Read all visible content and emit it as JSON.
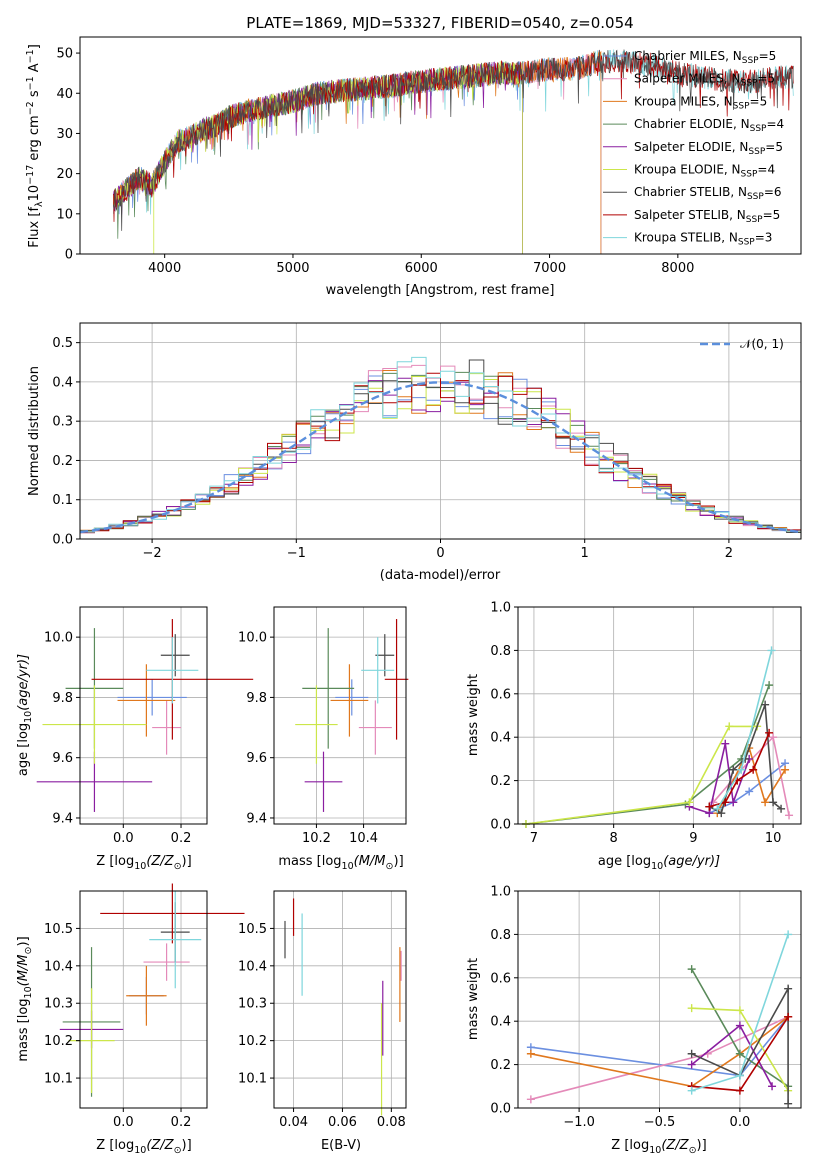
{
  "title": "PLATE=1869, MJD=53327, FIBERID=0540, z=0.054",
  "colors": {
    "Chabrier MILES": "#6b8fe0",
    "Salpeter MILES": "#e48ab9",
    "Kroupa MILES": "#e0781e",
    "Chabrier ELODIE": "#5a8a5a",
    "Salpeter ELODIE": "#8a1ea0",
    "Kroupa ELODIE": "#cce64a",
    "Chabrier STELIB": "#4a4a4a",
    "Salpeter STELIB": "#b00000",
    "Kroupa STELIB": "#7fd6dc"
  },
  "chart_data": [
    {
      "type": "line",
      "title": "PLATE=1869, MJD=53327, FIBERID=0540, z=0.054",
      "xlabel": "wavelength [Angstrom, rest frame]",
      "ylabel_parts": [
        "Flux [f",
        "λ",
        "10",
        "−17",
        " erg cm",
        "−2",
        " s",
        "−1",
        " A",
        "−1",
        "]"
      ],
      "xlim": [
        3340,
        8960
      ],
      "ylim": [
        0,
        54
      ],
      "xticks": [
        4000,
        5000,
        6000,
        7000,
        8000
      ],
      "yticks": [
        0,
        10,
        20,
        30,
        40,
        50
      ],
      "continuum_x": [
        3600,
        3700,
        3800,
        3900,
        4000,
        4100,
        4200,
        4300,
        4400,
        4500,
        4700,
        5000,
        5200,
        5500,
        5800,
        6000,
        6300,
        6600,
        6800,
        7000,
        7200,
        7400,
        7600,
        7800,
        8000,
        8200,
        8400,
        8600,
        8800,
        8900
      ],
      "continuum_y": [
        13,
        16,
        19,
        17,
        23,
        28,
        29,
        31,
        32,
        34,
        36,
        38,
        40,
        41,
        42,
        43,
        44,
        45,
        45,
        46,
        46,
        48,
        48,
        47,
        45,
        44,
        43,
        43,
        44,
        44
      ],
      "series": [
        {
          "name": "Chabrier MILES",
          "nssp": "5",
          "xmax": 7400
        },
        {
          "name": "Salpeter MILES",
          "nssp": "5",
          "xmax": 7400
        },
        {
          "name": "Kroupa MILES",
          "nssp": "5",
          "xmax": 7400
        },
        {
          "name": "Chabrier ELODIE",
          "nssp": "4",
          "xmax": 6790
        },
        {
          "name": "Salpeter ELODIE",
          "nssp": "5",
          "xmax": 6790
        },
        {
          "name": "Kroupa ELODIE",
          "nssp": "4",
          "xmax": 6790
        },
        {
          "name": "Chabrier STELIB",
          "nssp": "6",
          "xmax": 8900
        },
        {
          "name": "Salpeter STELIB",
          "nssp": "5",
          "xmax": 8900
        },
        {
          "name": "Kroupa STELIB",
          "nssp": "3",
          "xmax": 8900
        }
      ]
    },
    {
      "type": "bar",
      "xlabel": "(data-model)/error",
      "ylabel": "Normed distribution",
      "xlim": [
        -2.5,
        2.5
      ],
      "ylim": [
        0,
        0.55
      ],
      "xticks": [
        -2,
        -1,
        0,
        1,
        2
      ],
      "xticklabels": [
        "−2",
        "−1",
        "0",
        "1",
        "2"
      ],
      "yticks": [
        0.0,
        0.1,
        0.2,
        0.3,
        0.4,
        0.5
      ],
      "bin_width": 0.1,
      "gaussian_label": "𝒩(0, 1)"
    },
    {
      "type": "scatter",
      "xlabel_parts": [
        "Z [log",
        "10",
        "(Z/Z",
        "⊙",
        ")]"
      ],
      "ylabel_parts": [
        "age  [log",
        "10",
        "(age/yr)]"
      ],
      "xlim": [
        -0.15,
        0.29
      ],
      "ylim": [
        9.38,
        10.1
      ],
      "xticks": [
        0.0,
        0.2
      ],
      "yticks": [
        9.4,
        9.6,
        9.8,
        10.0
      ],
      "points": [
        {
          "s": "Chabrier MILES",
          "x": 0.1,
          "y": 9.8,
          "xe": 0.12,
          "ye": 0.06
        },
        {
          "s": "Salpeter MILES",
          "x": 0.15,
          "y": 9.7,
          "xe": 0.05,
          "ye": 0.09
        },
        {
          "s": "Kroupa MILES",
          "x": 0.08,
          "y": 9.79,
          "xe": 0.1,
          "ye": 0.12
        },
        {
          "s": "Chabrier ELODIE",
          "x": -0.1,
          "y": 9.83,
          "xe": 0.1,
          "ye": 0.2
        },
        {
          "s": "Salpeter ELODIE",
          "x": -0.1,
          "y": 9.52,
          "xe": 0.2,
          "ye": 0.1
        },
        {
          "s": "Kroupa ELODIE",
          "x": -0.1,
          "y": 9.71,
          "xe": 0.18,
          "ye": 0.13
        },
        {
          "s": "Chabrier STELIB",
          "x": 0.18,
          "y": 9.94,
          "xe": 0.05,
          "ye": 0.07
        },
        {
          "s": "Salpeter STELIB",
          "x": 0.17,
          "y": 9.86,
          "xe": 0.28,
          "ye": 0.2
        },
        {
          "s": "Kroupa STELIB",
          "x": 0.17,
          "y": 9.89,
          "xe": 0.09,
          "ye": 0.11
        }
      ]
    },
    {
      "type": "scatter",
      "xlabel_parts": [
        "mass [log",
        "10",
        "(M/M",
        "⊙",
        ")]"
      ],
      "xlim": [
        10.02,
        10.58
      ],
      "ylim": [
        9.38,
        10.1
      ],
      "xticks": [
        10.2,
        10.4
      ],
      "yticks": [
        9.4,
        9.6,
        9.8,
        10.0
      ],
      "points": [
        {
          "s": "Chabrier MILES",
          "x": 10.35,
          "y": 9.8,
          "xe": 0.07,
          "ye": 0.06
        },
        {
          "s": "Salpeter MILES",
          "x": 10.45,
          "y": 9.7,
          "xe": 0.07,
          "ye": 0.09
        },
        {
          "s": "Kroupa MILES",
          "x": 10.34,
          "y": 9.79,
          "xe": 0.08,
          "ye": 0.12
        },
        {
          "s": "Chabrier ELODIE",
          "x": 10.25,
          "y": 9.83,
          "xe": 0.11,
          "ye": 0.2
        },
        {
          "s": "Salpeter ELODIE",
          "x": 10.23,
          "y": 9.52,
          "xe": 0.08,
          "ye": 0.1
        },
        {
          "s": "Kroupa ELODIE",
          "x": 10.2,
          "y": 9.71,
          "xe": 0.09,
          "ye": 0.13
        },
        {
          "s": "Chabrier STELIB",
          "x": 10.49,
          "y": 9.94,
          "xe": 0.04,
          "ye": 0.07
        },
        {
          "s": "Salpeter STELIB",
          "x": 10.54,
          "y": 9.86,
          "xe": 0.05,
          "ye": 0.2
        },
        {
          "s": "Kroupa STELIB",
          "x": 10.46,
          "y": 9.89,
          "xe": 0.07,
          "ye": 0.11
        }
      ]
    },
    {
      "type": "line",
      "xlabel_parts": [
        "age  [log",
        "10",
        "(age/yr)]"
      ],
      "ylabel": "mass weight",
      "xlim": [
        6.8,
        10.35
      ],
      "ylim": [
        0,
        1.0
      ],
      "xticks": [
        7,
        8,
        9,
        10
      ],
      "yticks": [
        0.0,
        0.2,
        0.4,
        0.6,
        0.8,
        1.0
      ],
      "series": [
        {
          "s": "Chabrier MILES",
          "x": [
            9.2,
            9.5,
            9.7,
            10.15
          ],
          "y": [
            0.05,
            0.1,
            0.15,
            0.28
          ]
        },
        {
          "s": "Salpeter MILES",
          "x": [
            9.25,
            9.6,
            10.0,
            10.2
          ],
          "y": [
            0.1,
            0.25,
            0.4,
            0.04
          ]
        },
        {
          "s": "Kroupa MILES",
          "x": [
            9.3,
            9.7,
            9.9,
            10.15
          ],
          "y": [
            0.05,
            0.35,
            0.1,
            0.25
          ]
        },
        {
          "s": "Chabrier ELODIE",
          "x": [
            6.9,
            8.9,
            9.6,
            9.95
          ],
          "y": [
            0.0,
            0.09,
            0.3,
            0.64
          ]
        },
        {
          "s": "Salpeter ELODIE",
          "x": [
            8.95,
            9.2,
            9.4,
            9.5,
            9.7
          ],
          "y": [
            0.08,
            0.05,
            0.37,
            0.1,
            0.3
          ]
        },
        {
          "s": "Kroupa ELODIE",
          "x": [
            6.9,
            8.95,
            9.45,
            9.8
          ],
          "y": [
            0.0,
            0.1,
            0.45,
            0.45
          ]
        },
        {
          "s": "Chabrier STELIB",
          "x": [
            9.2,
            9.35,
            9.5,
            9.65,
            9.9,
            10.0,
            10.1
          ],
          "y": [
            0.08,
            0.05,
            0.25,
            0.3,
            0.55,
            0.1,
            0.07
          ]
        },
        {
          "s": "Salpeter STELIB",
          "x": [
            9.2,
            9.4,
            9.55,
            9.75,
            9.95
          ],
          "y": [
            0.08,
            0.1,
            0.2,
            0.25,
            0.42
          ]
        },
        {
          "s": "Kroupa STELIB",
          "x": [
            9.3,
            9.6,
            9.98
          ],
          "y": [
            0.07,
            0.25,
            0.8
          ]
        }
      ]
    },
    {
      "type": "scatter",
      "xlabel_parts": [
        "Z [log",
        "10",
        "(Z/Z",
        "⊙",
        ")]"
      ],
      "ylabel_parts": [
        "mass [log",
        "10",
        "(M/M",
        "⊙",
        ")]"
      ],
      "xlim": [
        -0.15,
        0.29
      ],
      "ylim": [
        10.02,
        10.6
      ],
      "xticks": [
        0.0,
        0.2
      ],
      "yticks": [
        10.1,
        10.2,
        10.3,
        10.4,
        10.5
      ],
      "points": [
        {
          "s": "Chabrier MILES",
          "x": 0.08,
          "y": 10.32,
          "xe": 0.06,
          "ye": 0.05
        },
        {
          "s": "Salpeter MILES",
          "x": 0.15,
          "y": 10.41,
          "xe": 0.08,
          "ye": 0.05
        },
        {
          "s": "Kroupa MILES",
          "x": 0.08,
          "y": 10.32,
          "xe": 0.07,
          "ye": 0.08
        },
        {
          "s": "Chabrier ELODIE",
          "x": -0.11,
          "y": 10.25,
          "xe": 0.1,
          "ye": 0.2
        },
        {
          "s": "Salpeter ELODIE",
          "x": -0.11,
          "y": 10.23,
          "xe": 0.11,
          "ye": 0.05
        },
        {
          "s": "Kroupa ELODIE",
          "x": -0.11,
          "y": 10.2,
          "xe": 0.08,
          "ye": 0.14
        },
        {
          "s": "Chabrier STELIB",
          "x": 0.18,
          "y": 10.49,
          "xe": 0.05,
          "ye": 0.08
        },
        {
          "s": "Salpeter STELIB",
          "x": 0.17,
          "y": 10.54,
          "xe": 0.25,
          "ye": 0.08
        },
        {
          "s": "Kroupa STELIB",
          "x": 0.18,
          "y": 10.47,
          "xe": 0.09,
          "ye": 0.13
        }
      ]
    },
    {
      "type": "scatter",
      "xlabel": "E(B-V)",
      "xlim": [
        0.032,
        0.086
      ],
      "ylim": [
        10.02,
        10.6
      ],
      "xticks": [
        0.04,
        0.06,
        0.08
      ],
      "yticks": [
        10.1,
        10.2,
        10.3,
        10.4,
        10.5
      ],
      "points": [
        {
          "s": "Chabrier STELIB",
          "x": 0.0365,
          "y": 10.47,
          "xe": 0,
          "ye": 0.05
        },
        {
          "s": "Salpeter STELIB",
          "x": 0.04,
          "y": 10.53,
          "xe": 0,
          "ye": 0.05
        },
        {
          "s": "Kroupa STELIB",
          "x": 0.0435,
          "y": 10.43,
          "xe": 0,
          "ye": 0.11
        },
        {
          "s": "Kroupa ELODIE",
          "x": 0.076,
          "y": 10.15,
          "xe": 0,
          "ye": 0.15
        },
        {
          "s": "Salpeter ELODIE",
          "x": 0.0765,
          "y": 10.26,
          "xe": 0,
          "ye": 0.1
        },
        {
          "s": "Kroupa MILES",
          "x": 0.0835,
          "y": 10.35,
          "xe": 0,
          "ye": 0.1
        },
        {
          "s": "Salpeter MILES",
          "x": 0.084,
          "y": 10.4,
          "xe": 0,
          "ye": 0.04
        }
      ]
    },
    {
      "type": "line",
      "xlabel_parts": [
        "Z [log",
        "10",
        "(Z/Z",
        "⊙",
        ")]"
      ],
      "ylabel": "mass weight",
      "xlim": [
        -1.38,
        0.38
      ],
      "ylim": [
        0,
        1.0
      ],
      "xticks": [
        -1.0,
        -0.5,
        0.0
      ],
      "xticklabels": [
        "−1.0",
        "−0.5",
        "0.0"
      ],
      "yticks": [
        0.0,
        0.2,
        0.4,
        0.6,
        0.8,
        1.0
      ],
      "series": [
        {
          "s": "Chabrier MILES",
          "x": [
            -1.3,
            0.0,
            0.3
          ],
          "y": [
            0.28,
            0.15,
            0.42
          ]
        },
        {
          "s": "Salpeter MILES",
          "x": [
            -1.3,
            -0.2,
            0.3
          ],
          "y": [
            0.04,
            0.25,
            0.42
          ]
        },
        {
          "s": "Kroupa MILES",
          "x": [
            -1.3,
            -0.3,
            0.0,
            0.3
          ],
          "y": [
            0.25,
            0.1,
            0.25,
            0.42
          ]
        },
        {
          "s": "Chabrier ELODIE",
          "x": [
            -0.3,
            0.0,
            0.3
          ],
          "y": [
            0.64,
            0.25,
            0.1
          ]
        },
        {
          "s": "Salpeter ELODIE",
          "x": [
            -0.3,
            0.0,
            0.2
          ],
          "y": [
            0.2,
            0.38,
            0.1
          ]
        },
        {
          "s": "Kroupa ELODIE",
          "x": [
            -0.3,
            0.0,
            0.3
          ],
          "y": [
            0.46,
            0.45,
            0.08
          ]
        },
        {
          "s": "Chabrier STELIB",
          "x": [
            -0.3,
            0.0,
            0.3,
            0.3
          ],
          "y": [
            0.25,
            0.15,
            0.55,
            0.02
          ]
        },
        {
          "s": "Salpeter STELIB",
          "x": [
            -0.3,
            0.0,
            0.3
          ],
          "y": [
            0.1,
            0.08,
            0.42
          ]
        },
        {
          "s": "Kroupa STELIB",
          "x": [
            -0.3,
            0.0,
            0.3
          ],
          "y": [
            0.08,
            0.15,
            0.8
          ]
        }
      ]
    }
  ]
}
